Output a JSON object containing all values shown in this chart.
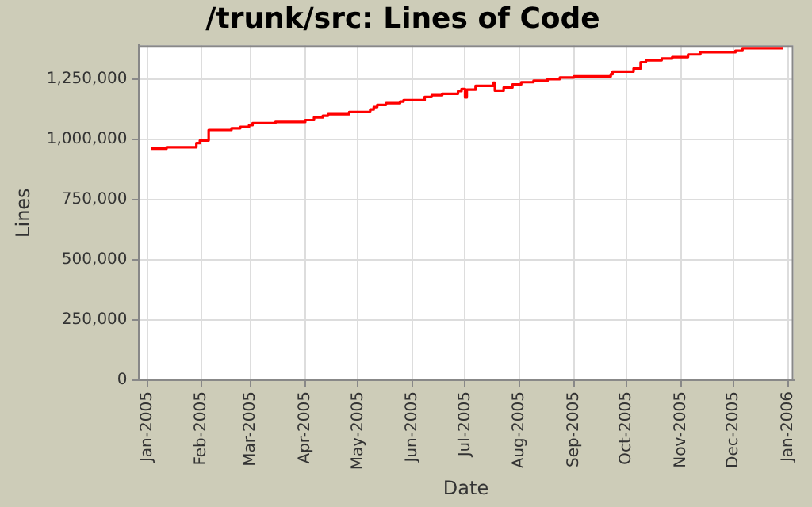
{
  "chart_data": {
    "type": "step",
    "title": "/trunk/src: Lines of Code",
    "xlabel": "Date",
    "ylabel": "Lines",
    "x": [
      "2005-01-03",
      "2005-01-12",
      "2005-01-29",
      "2005-01-31",
      "2005-02-05",
      "2005-02-18",
      "2005-02-23",
      "2005-02-28",
      "2005-03-02",
      "2005-03-15",
      "2005-04-01",
      "2005-04-06",
      "2005-04-11",
      "2005-04-14",
      "2005-04-26",
      "2005-05-08",
      "2005-05-10",
      "2005-05-12",
      "2005-05-17",
      "2005-05-25",
      "2005-05-27",
      "2005-06-08",
      "2005-06-12",
      "2005-06-18",
      "2005-06-27",
      "2005-06-29",
      "2005-07-01",
      "2005-07-02",
      "2005-07-07",
      "2005-07-17",
      "2005-07-18",
      "2005-07-23",
      "2005-07-28",
      "2005-08-02",
      "2005-08-09",
      "2005-08-17",
      "2005-08-24",
      "2005-09-01",
      "2005-09-22",
      "2005-09-23",
      "2005-10-05",
      "2005-10-09",
      "2005-10-12",
      "2005-10-21",
      "2005-10-27",
      "2005-11-05",
      "2005-11-12",
      "2005-12-02",
      "2005-12-06",
      "2005-12-29"
    ],
    "series": [
      {
        "color": "#ff0000",
        "values": [
          961000,
          967000,
          984000,
          995000,
          1039000,
          1046000,
          1052000,
          1059000,
          1067000,
          1072000,
          1080000,
          1091000,
          1098000,
          1104000,
          1113000,
          1124000,
          1134000,
          1143000,
          1150000,
          1157000,
          1163000,
          1176000,
          1183000,
          1189000,
          1200000,
          1209000,
          1174000,
          1206000,
          1222000,
          1235000,
          1202000,
          1215000,
          1228000,
          1237000,
          1243000,
          1250000,
          1256000,
          1261000,
          1270000,
          1281000,
          1294000,
          1320000,
          1328000,
          1335000,
          1341000,
          1352000,
          1361000,
          1367000,
          1378000,
          1378000
        ]
      }
    ],
    "xlim": [
      "2004-12-27",
      "2006-01-04"
    ],
    "xticks": [
      {
        "value": "2005-01",
        "label": "Jan-2005"
      },
      {
        "value": "2005-02",
        "label": "Feb-2005"
      },
      {
        "value": "2005-03",
        "label": "Mar-2005"
      },
      {
        "value": "2005-04",
        "label": "Apr-2005"
      },
      {
        "value": "2005-05",
        "label": "May-2005"
      },
      {
        "value": "2005-06",
        "label": "Jun-2005"
      },
      {
        "value": "2005-07",
        "label": "Jul-2005"
      },
      {
        "value": "2005-08",
        "label": "Aug-2005"
      },
      {
        "value": "2005-09",
        "label": "Sep-2005"
      },
      {
        "value": "2005-10",
        "label": "Oct-2005"
      },
      {
        "value": "2005-11",
        "label": "Nov-2005"
      },
      {
        "value": "2005-12",
        "label": "Dec-2005"
      },
      {
        "value": "2006-01",
        "label": "Jan-2006"
      }
    ],
    "ylim": [
      0,
      1390000
    ],
    "yticks": [
      0,
      {
        "value": 250000,
        "label": "250,000"
      },
      {
        "value": 500000,
        "label": "500,000"
      },
      {
        "value": 750000,
        "label": "750,000"
      },
      {
        "value": 1000000,
        "label": "1,000,000"
      },
      {
        "value": 1250000,
        "label": "1,250,000"
      }
    ],
    "grid": true,
    "legend": false,
    "marker": "none",
    "line_style": "solid"
  }
}
